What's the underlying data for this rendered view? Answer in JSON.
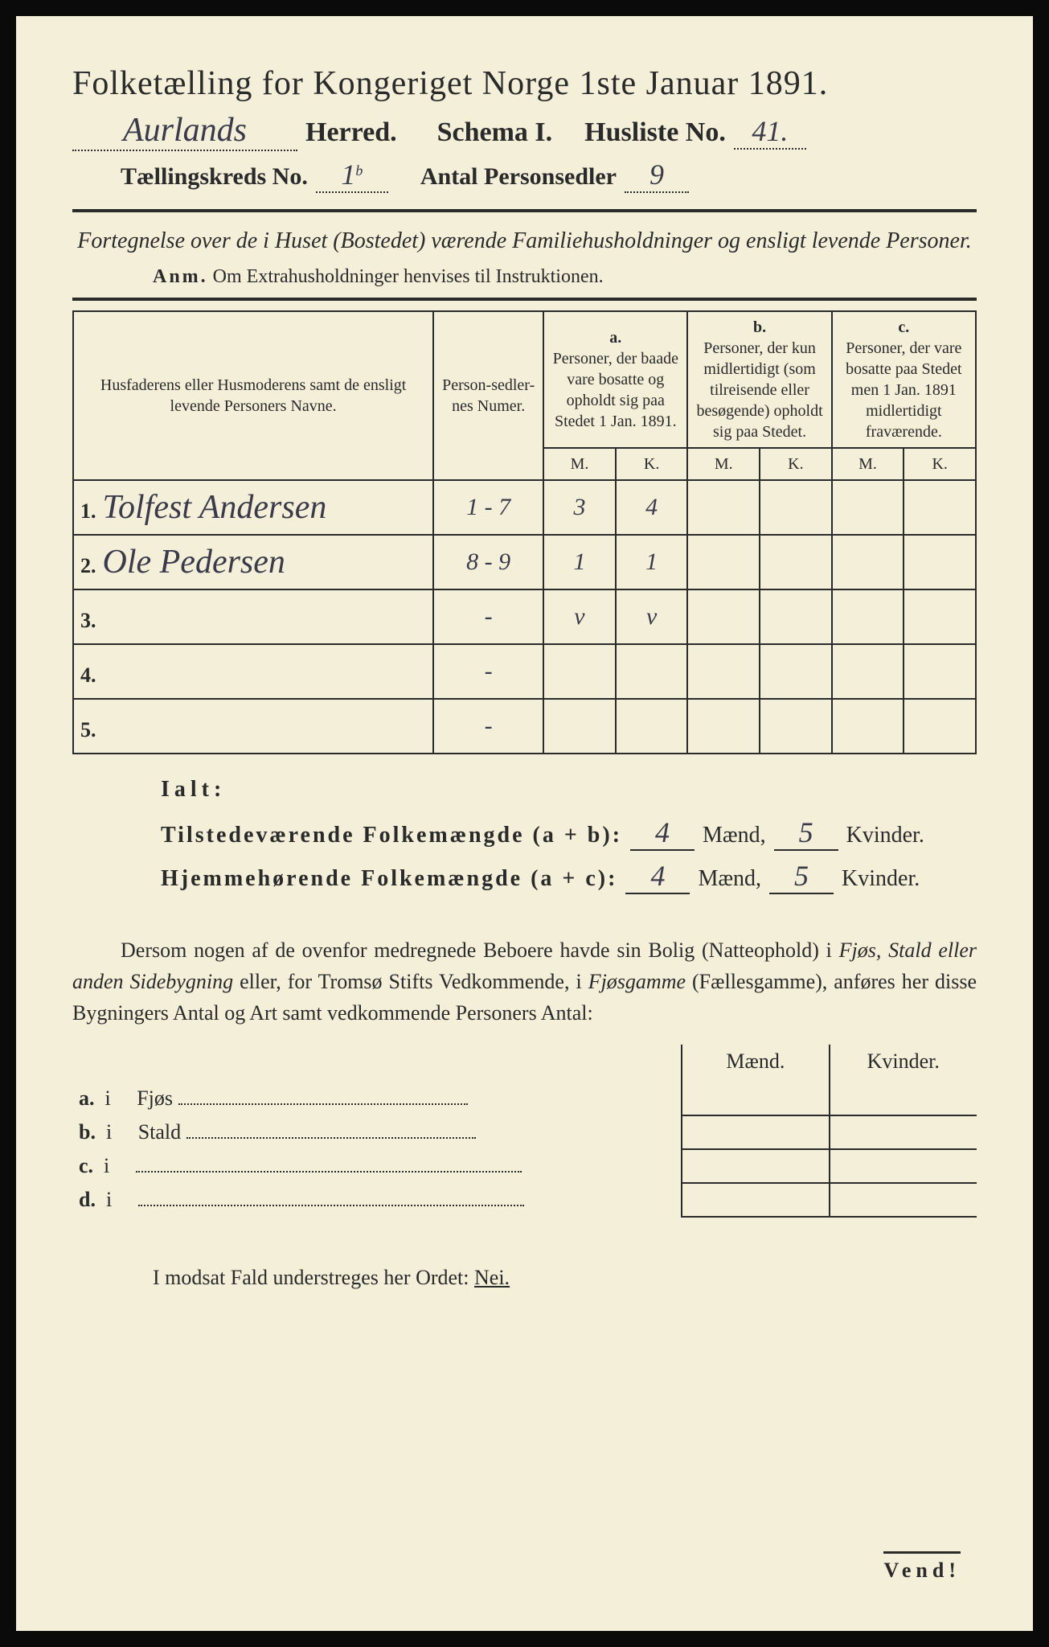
{
  "title": "Folketælling for Kongeriget Norge 1ste Januar 1891.",
  "header": {
    "herred_hand": "Aurlands",
    "herred_label": "Herred.",
    "schema_label": "Schema I.",
    "husliste_label": "Husliste No.",
    "husliste_no": "41.",
    "kreds_label": "Tællingskreds No.",
    "kreds_no": "1",
    "kreds_sup": "b",
    "personsedler_label": "Antal Personsedler",
    "personsedler_no": "9"
  },
  "subtitle": "Fortegnelse over de i Huset (Bostedet) værende Familiehusholdninger og ensligt levende Personer.",
  "anm_label": "Anm.",
  "anm_text": "Om Extrahusholdninger henvises til Instruktionen.",
  "table": {
    "col_names": "Husfaderens eller Husmoderens samt de ensligt levende Personers Navne.",
    "col_numer": "Person-sedler-nes Numer.",
    "col_a_head": "a.",
    "col_a": "Personer, der baade vare bosatte og opholdt sig paa Stedet 1 Jan. 1891.",
    "col_b_head": "b.",
    "col_b": "Personer, der kun midlertidigt (som tilreisende eller besøgende) opholdt sig paa Stedet.",
    "col_c_head": "c.",
    "col_c": "Personer, der vare bosatte paa Stedet men 1 Jan. 1891 midlertidigt fraværende.",
    "m": "M.",
    "k": "K.",
    "rows": [
      {
        "n": "1.",
        "name": "Tolfest Andersen",
        "numer": "1 - 7",
        "a_m": "3",
        "a_k": "4",
        "b_m": "",
        "b_k": "",
        "c_m": "",
        "c_k": ""
      },
      {
        "n": "2.",
        "name": "Ole Pedersen",
        "numer": "8 - 9",
        "a_m": "1",
        "a_k": "1",
        "b_m": "",
        "b_k": "",
        "c_m": "",
        "c_k": ""
      },
      {
        "n": "3.",
        "name": "",
        "numer": "-",
        "a_m": "v",
        "a_k": "v",
        "b_m": "",
        "b_k": "",
        "c_m": "",
        "c_k": ""
      },
      {
        "n": "4.",
        "name": "",
        "numer": "-",
        "a_m": "",
        "a_k": "",
        "b_m": "",
        "b_k": "",
        "c_m": "",
        "c_k": ""
      },
      {
        "n": "5.",
        "name": "",
        "numer": "-",
        "a_m": "",
        "a_k": "",
        "b_m": "",
        "b_k": "",
        "c_m": "",
        "c_k": ""
      }
    ]
  },
  "ialt": {
    "title": "Ialt:",
    "line1_label": "Tilstedeværende Folkemængde (a + b):",
    "line2_label": "Hjemmehørende Folkemængde (a + c):",
    "maend": "Mænd,",
    "kvinder": "Kvinder.",
    "v1_m": "4",
    "v1_k": "5",
    "v2_m": "4",
    "v2_k": "5"
  },
  "para": {
    "text1": "Dersom nogen af de ovenfor medregnede Beboere havde sin Bolig (Natteophold) i ",
    "it1": "Fjøs, Stald eller anden Sidebygning",
    "text2": " eller, for Tromsø Stifts Vedkommende, i ",
    "it2": "Fjøsgamme",
    "text3": " (Fællesgamme), anføres her disse Bygningers Antal og Art samt vedkommende Personers Antal:"
  },
  "sidetable": {
    "maend": "Mænd.",
    "kvinder": "Kvinder.",
    "rows": [
      {
        "k": "a.",
        "i": "i",
        "label": "Fjøs"
      },
      {
        "k": "b.",
        "i": "i",
        "label": "Stald"
      },
      {
        "k": "c.",
        "i": "i",
        "label": ""
      },
      {
        "k": "d.",
        "i": "i",
        "label": ""
      }
    ]
  },
  "nei": {
    "pre": "I modsat Fald understreges her Ordet: ",
    "word": "Nei."
  },
  "vend": "Vend!",
  "colors": {
    "paper": "#f4efd8",
    "ink": "#2a2a2a",
    "handwriting": "#3a3a4a",
    "background": "#0a0a0a"
  },
  "typography": {
    "title_fontsize": 42,
    "body_fontsize": 26,
    "table_header_fontsize": 20,
    "handwritten_fontsize": 42
  }
}
